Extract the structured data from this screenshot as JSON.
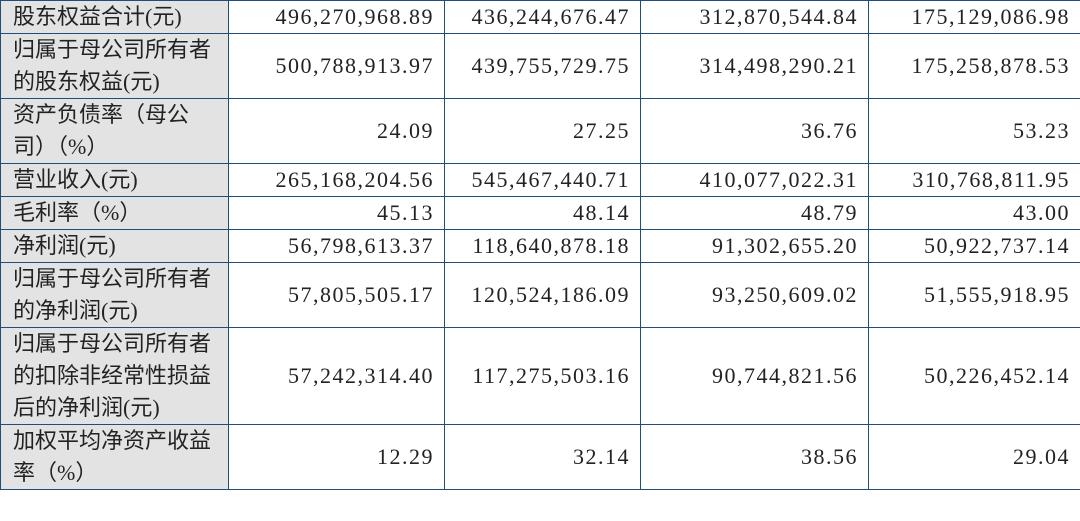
{
  "table": {
    "rows": [
      [
        "股东权益合计(元)",
        "496,270,968.89",
        "436,244,676.47",
        "312,870,544.84",
        "175,129,086.98"
      ],
      [
        "归属于母公司所有者的股东权益(元)",
        "500,788,913.97",
        "439,755,729.75",
        "314,498,290.21",
        "175,258,878.53"
      ],
      [
        "资产负债率（母公司）（%）",
        "24.09",
        "27.25",
        "36.76",
        "53.23"
      ],
      [
        "营业收入(元)",
        "265,168,204.56",
        "545,467,440.71",
        "410,077,022.31",
        "310,768,811.95"
      ],
      [
        "毛利率（%）",
        "45.13",
        "48.14",
        "48.79",
        "43.00"
      ],
      [
        "净利润(元)",
        "56,798,613.37",
        "118,640,878.18",
        "91,302,655.20",
        "50,922,737.14"
      ],
      [
        "归属于母公司所有者的净利润(元)",
        "57,805,505.17",
        "120,524,186.09",
        "93,250,609.02",
        "51,555,918.95"
      ],
      [
        "归属于母公司所有者的扣除非经常性损益后的净利润(元)",
        "57,242,314.40",
        "117,275,503.16",
        "90,744,821.56",
        "50,226,452.14"
      ],
      [
        "加权平均净资产收益率（%）",
        "12.29",
        "32.14",
        "38.56",
        "29.04"
      ]
    ]
  }
}
